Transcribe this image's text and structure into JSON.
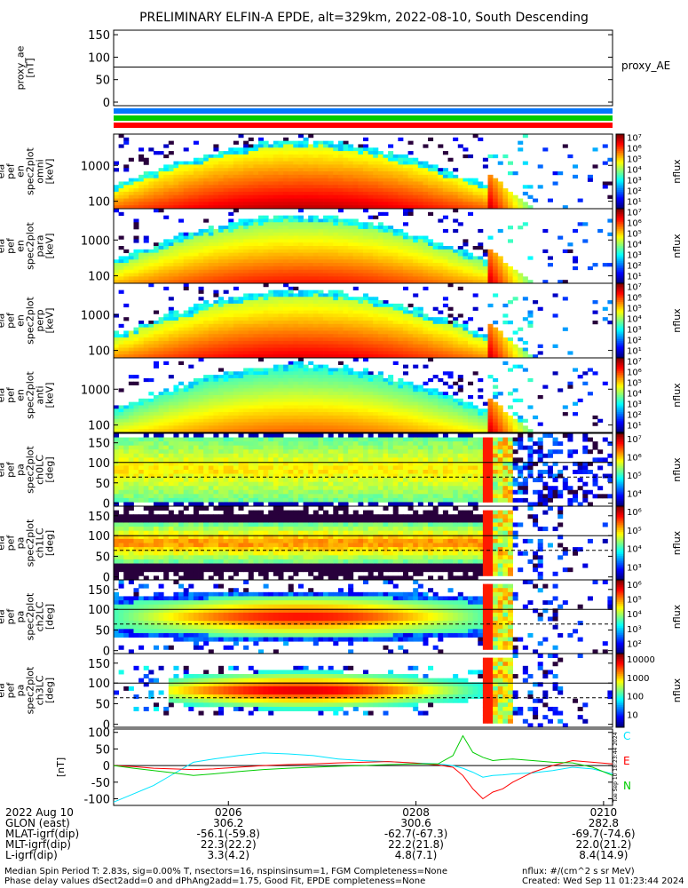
{
  "title": "PRELIMINARY ELFIN-A EPDE, alt=329km, 2022-08-10, South Descending",
  "panels": {
    "proxy": {
      "ylabel": [
        "proxy_ae",
        "[nT]"
      ],
      "yticks": [
        "150",
        "100",
        "50",
        "0"
      ],
      "legend": "proxy_AE"
    },
    "omni": {
      "ylabel": [
        "ela",
        "pef",
        "en",
        "spec2plot",
        "omni",
        "[keV]"
      ],
      "yticks": [
        "1000",
        "100"
      ]
    },
    "para": {
      "ylabel": [
        "ela",
        "pef",
        "en",
        "spec2plot",
        "para",
        "[keV]"
      ],
      "yticks": [
        "1000",
        "100"
      ]
    },
    "perp": {
      "ylabel": [
        "ela",
        "pef",
        "en",
        "spec2plot",
        "perp",
        "[keV]"
      ],
      "yticks": [
        "1000",
        "100"
      ]
    },
    "anti": {
      "ylabel": [
        "ela",
        "pef",
        "en",
        "spec2plot",
        "anti",
        "[keV]"
      ],
      "yticks": [
        "1000",
        "100"
      ]
    },
    "ch0": {
      "ylabel": [
        "ela",
        "pef",
        "pa",
        "spec2plot",
        "ch0LC",
        "[deg]"
      ],
      "yticks": [
        "150",
        "100",
        "50",
        "0"
      ]
    },
    "ch1": {
      "ylabel": [
        "ela",
        "pef",
        "pa",
        "spec2plot",
        "ch1LC",
        "[deg]"
      ],
      "yticks": [
        "150",
        "100",
        "50",
        "0"
      ]
    },
    "ch2": {
      "ylabel": [
        "ela",
        "pef",
        "pa",
        "spec2plot",
        "ch2LC",
        "[deg]"
      ],
      "yticks": [
        "150",
        "100",
        "50",
        "0"
      ]
    },
    "ch3": {
      "ylabel": [
        "ela",
        "pef",
        "pa",
        "spec2plot",
        "ch3LC",
        "[deg]"
      ],
      "yticks": [
        "150",
        "100",
        "50",
        "0"
      ]
    },
    "mag": {
      "ylabel": [
        "[nT]"
      ],
      "yticks": [
        "100",
        "50",
        "0",
        "-50",
        "-100"
      ],
      "legend": [
        "C",
        "E",
        "N"
      ]
    }
  },
  "colorbars": {
    "omni": {
      "label": "nflux",
      "ticks": [
        "10⁷",
        "10⁶",
        "10⁵",
        "10⁴",
        "10³",
        "10²",
        "10¹"
      ]
    },
    "para": {
      "label": "nflux",
      "ticks": [
        "10⁷",
        "10⁶",
        "10⁵",
        "10⁴",
        "10³",
        "10²",
        "10¹"
      ]
    },
    "perp": {
      "label": "nflux",
      "ticks": [
        "10⁷",
        "10⁶",
        "10⁵",
        "10⁴",
        "10³",
        "10²",
        "10¹"
      ]
    },
    "anti": {
      "label": "nflux",
      "ticks": [
        "10⁷",
        "10⁶",
        "10⁵",
        "10⁴",
        "10³",
        "10²",
        "10¹"
      ]
    },
    "ch0": {
      "label": "nflux",
      "ticks": [
        "10⁷",
        "10⁶",
        "10⁵",
        "10⁴"
      ]
    },
    "ch1": {
      "label": "nflux",
      "ticks": [
        "10⁶",
        "10⁵",
        "10⁴",
        "10³"
      ]
    },
    "ch2": {
      "label": "nflux",
      "ticks": [
        "10⁶",
        "10⁵",
        "10⁴",
        "10³",
        "10²"
      ]
    },
    "ch3": {
      "label": "nflux",
      "ticks": [
        "10000",
        "1000",
        "100",
        "10"
      ]
    }
  },
  "colors": {
    "C": "#00e5ff",
    "E": "#ff0000",
    "N": "#00cc00",
    "bar_blue": "#0077ff",
    "bar_green": "#00cc00",
    "bar_red": "#ff0000"
  },
  "xaxis": {
    "ticks": [
      "0206",
      "0208",
      "0210"
    ],
    "rows": [
      {
        "label": "2022 Aug 10",
        "vals": [
          "0206",
          "0208",
          "0210"
        ]
      },
      {
        "label": "GLON (east)",
        "vals": [
          "306.2",
          "300.6",
          "282.8"
        ]
      },
      {
        "label": "MLAT-igrf(dip)",
        "vals": [
          "-56.1(-59.8)",
          "-62.7(-67.3)",
          "-69.7(-74.6)"
        ]
      },
      {
        "label": "MLT-igrf(dip)",
        "vals": [
          "22.3(22.2)",
          "22.2(21.8)",
          "22.0(21.2)"
        ]
      },
      {
        "label": "L-igrf(dip)",
        "vals": [
          "3.3(4.2)",
          "4.8(7.1)",
          "8.4(14.9)"
        ]
      }
    ]
  },
  "footer": {
    "left1": "Median Spin Period T: 2.83s, sig=0.00% T, nsectors=16, nspinsinsum=1, FGM Completeness=None",
    "left2": "Phase delay values dSect2add=0 and dPhAng2add=1.75, Good Fit, EPDE completeness=None",
    "right1": "nflux: #/(cm^2 s sr MeV)",
    "right2": "Created: Wed Sep 11 01:23:44 2024"
  },
  "stamp": "Tue Sep 10 18:23:44 2024",
  "chart_data": [
    {
      "type": "line",
      "title": "PRELIMINARY ELFIN-A EPDE, alt=329km, 2022-08-10, South Descending",
      "ylabel": "proxy_ae [nT]",
      "ylim": [
        0,
        160
      ],
      "series": [
        {
          "name": "proxy_AE",
          "x": [
            "0204",
            "0206",
            "0208",
            "0210"
          ],
          "values": [
            78,
            78,
            78,
            78
          ]
        }
      ]
    },
    {
      "type": "heatmap",
      "ylabel": "[keV]",
      "yscale": "log",
      "ylim": [
        60,
        7000
      ],
      "colorbar": "nflux",
      "note": "omni energy spectrogram"
    },
    {
      "type": "heatmap",
      "ylabel": "[keV]",
      "yscale": "log",
      "colorbar": "nflux",
      "note": "para energy spectrogram"
    },
    {
      "type": "heatmap",
      "ylabel": "[keV]",
      "yscale": "log",
      "colorbar": "nflux",
      "note": "perp energy spectrogram"
    },
    {
      "type": "heatmap",
      "ylabel": "[keV]",
      "yscale": "log",
      "colorbar": "nflux",
      "note": "anti energy spectrogram"
    },
    {
      "type": "heatmap",
      "ylabel": "[deg]",
      "ylim": [
        0,
        180
      ],
      "colorbar": "nflux",
      "note": "ch0LC pitch angle"
    },
    {
      "type": "heatmap",
      "ylabel": "[deg]",
      "ylim": [
        0,
        180
      ],
      "colorbar": "nflux",
      "note": "ch1LC pitch angle"
    },
    {
      "type": "heatmap",
      "ylabel": "[deg]",
      "ylim": [
        0,
        180
      ],
      "colorbar": "nflux",
      "note": "ch2LC pitch angle"
    },
    {
      "type": "heatmap",
      "ylabel": "[deg]",
      "ylim": [
        0,
        180
      ],
      "colorbar": "nflux",
      "note": "ch3LC pitch angle"
    },
    {
      "type": "line",
      "ylabel": "[nT]",
      "ylim": [
        -120,
        110
      ],
      "x": [
        0,
        0.04,
        0.08,
        0.12,
        0.16,
        0.2,
        0.25,
        0.3,
        0.35,
        0.4,
        0.45,
        0.5,
        0.55,
        0.6,
        0.65,
        0.68,
        0.7,
        0.72,
        0.74,
        0.76,
        0.78,
        0.8,
        0.84,
        0.88,
        0.92,
        0.96,
        1.0
      ],
      "series": [
        {
          "name": "C",
          "values": [
            -110,
            -85,
            -60,
            -25,
            10,
            20,
            30,
            38,
            35,
            30,
            20,
            15,
            12,
            8,
            5,
            0,
            -8,
            -20,
            -35,
            -30,
            -28,
            -25,
            -22,
            -15,
            -5,
            -10,
            -25
          ]
        },
        {
          "name": "E",
          "values": [
            0,
            -3,
            -8,
            -10,
            -12,
            -10,
            -5,
            0,
            3,
            5,
            8,
            10,
            12,
            8,
            2,
            -5,
            -30,
            -70,
            -100,
            -80,
            -70,
            -50,
            -20,
            0,
            15,
            10,
            5
          ]
        },
        {
          "name": "N",
          "values": [
            0,
            -8,
            -15,
            -22,
            -30,
            -25,
            -18,
            -12,
            -8,
            -5,
            -2,
            0,
            3,
            5,
            5,
            30,
            90,
            40,
            25,
            15,
            18,
            20,
            15,
            10,
            8,
            -5,
            -30
          ]
        }
      ]
    }
  ]
}
